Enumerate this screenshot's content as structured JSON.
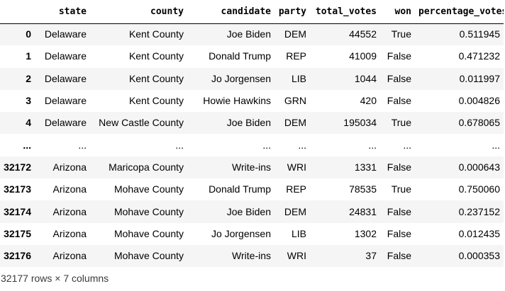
{
  "table": {
    "index_header": "",
    "columns": [
      "state",
      "county",
      "candidate",
      "party",
      "total_votes",
      "won",
      "percentage_votes"
    ],
    "rows": [
      {
        "index": "0",
        "cells": [
          "Delaware",
          "Kent County",
          "Joe Biden",
          "DEM",
          "44552",
          "True",
          "0.511945"
        ]
      },
      {
        "index": "1",
        "cells": [
          "Delaware",
          "Kent County",
          "Donald Trump",
          "REP",
          "41009",
          "False",
          "0.471232"
        ]
      },
      {
        "index": "2",
        "cells": [
          "Delaware",
          "Kent County",
          "Jo Jorgensen",
          "LIB",
          "1044",
          "False",
          "0.011997"
        ]
      },
      {
        "index": "3",
        "cells": [
          "Delaware",
          "Kent County",
          "Howie Hawkins",
          "GRN",
          "420",
          "False",
          "0.004826"
        ]
      },
      {
        "index": "4",
        "cells": [
          "Delaware",
          "New Castle County",
          "Joe Biden",
          "DEM",
          "195034",
          "True",
          "0.678065"
        ]
      },
      {
        "index": "...",
        "cells": [
          "...",
          "...",
          "...",
          "...",
          "...",
          "...",
          "..."
        ]
      },
      {
        "index": "32172",
        "cells": [
          "Arizona",
          "Maricopa County",
          "Write-ins",
          "WRI",
          "1331",
          "False",
          "0.000643"
        ]
      },
      {
        "index": "32173",
        "cells": [
          "Arizona",
          "Mohave County",
          "Donald Trump",
          "REP",
          "78535",
          "True",
          "0.750060"
        ]
      },
      {
        "index": "32174",
        "cells": [
          "Arizona",
          "Mohave County",
          "Joe Biden",
          "DEM",
          "24831",
          "False",
          "0.237152"
        ]
      },
      {
        "index": "32175",
        "cells": [
          "Arizona",
          "Mohave County",
          "Jo Jorgensen",
          "LIB",
          "1302",
          "False",
          "0.012435"
        ]
      },
      {
        "index": "32176",
        "cells": [
          "Arizona",
          "Mohave County",
          "Write-ins",
          "WRI",
          "37",
          "False",
          "0.000353"
        ]
      }
    ]
  },
  "footer": {
    "shape_text": "32177 rows × 7 columns"
  }
}
